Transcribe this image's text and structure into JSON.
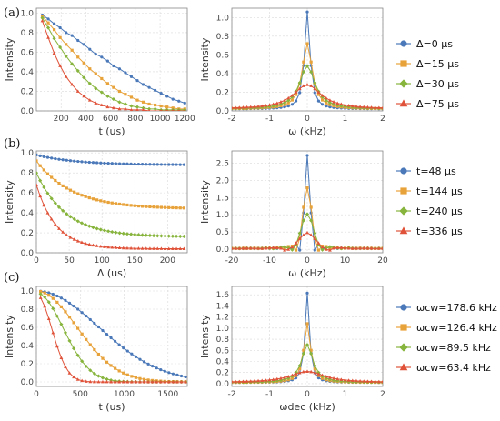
{
  "panels": [
    {
      "label": "(a)"
    },
    {
      "label": "(b)"
    },
    {
      "label": "(c)"
    }
  ],
  "colors": {
    "blue": "#4a78b8",
    "orange": "#e8a23a",
    "green": "#87b43c",
    "red": "#e0533a"
  },
  "chart_data": [
    {
      "id": "a-left",
      "type": "line",
      "xlabel": "t (us)",
      "ylabel": "Intensity",
      "xlim": [
        0,
        1220
      ],
      "ylim": [
        0,
        1.05
      ],
      "xticks": [
        200,
        400,
        600,
        800,
        1000,
        1200
      ],
      "xtick_labels": [
        "200",
        "400",
        "600",
        "800",
        "1000",
        "1200"
      ],
      "yticks": [
        0.0,
        0.2,
        0.4,
        0.6,
        0.8,
        1.0
      ],
      "ytick_labels": [
        "0.0",
        "0.2",
        "0.4",
        "0.6",
        "0.8",
        "1.0"
      ],
      "grid": true,
      "series": [
        {
          "color": "blue",
          "marker": "circle",
          "x": [
            48,
            96,
            144,
            192,
            240,
            288,
            336,
            384,
            432,
            480,
            528,
            576,
            624,
            672,
            720,
            768,
            816,
            864,
            912,
            960,
            1008,
            1056,
            1104,
            1152,
            1200
          ],
          "y": [
            0.98,
            0.94,
            0.89,
            0.85,
            0.8,
            0.77,
            0.72,
            0.68,
            0.63,
            0.58,
            0.55,
            0.51,
            0.46,
            0.43,
            0.39,
            0.35,
            0.31,
            0.27,
            0.24,
            0.21,
            0.18,
            0.15,
            0.12,
            0.1,
            0.08
          ]
        },
        {
          "color": "orange",
          "marker": "square",
          "x": [
            48,
            96,
            144,
            192,
            240,
            288,
            336,
            384,
            432,
            480,
            528,
            576,
            624,
            672,
            720,
            768,
            816,
            864,
            912,
            960,
            1008,
            1056,
            1104,
            1152,
            1200
          ],
          "y": [
            0.97,
            0.9,
            0.83,
            0.75,
            0.68,
            0.62,
            0.55,
            0.49,
            0.43,
            0.38,
            0.33,
            0.28,
            0.24,
            0.2,
            0.17,
            0.14,
            0.11,
            0.09,
            0.07,
            0.06,
            0.05,
            0.04,
            0.03,
            0.02,
            0.02
          ]
        },
        {
          "color": "green",
          "marker": "diamond",
          "x": [
            48,
            96,
            144,
            192,
            240,
            288,
            336,
            384,
            432,
            480,
            528,
            576,
            624,
            672,
            720,
            768,
            816,
            864,
            912,
            960,
            1008,
            1056,
            1104,
            1152,
            1200
          ],
          "y": [
            0.95,
            0.85,
            0.74,
            0.65,
            0.56,
            0.48,
            0.41,
            0.34,
            0.28,
            0.23,
            0.19,
            0.15,
            0.12,
            0.09,
            0.07,
            0.05,
            0.04,
            0.03,
            0.02,
            0.02,
            0.01,
            0.01,
            0.01,
            0.01,
            0.01
          ]
        },
        {
          "color": "red",
          "marker": "triangle",
          "x": [
            48,
            96,
            144,
            192,
            240,
            288,
            336,
            384,
            432,
            480,
            528,
            576,
            624,
            672,
            720,
            768,
            816,
            864,
            912,
            960,
            1008,
            1056,
            1104,
            1152,
            1200
          ],
          "y": [
            0.92,
            0.75,
            0.59,
            0.46,
            0.35,
            0.27,
            0.2,
            0.15,
            0.11,
            0.08,
            0.06,
            0.04,
            0.03,
            0.02,
            0.02,
            0.01,
            0.01,
            0.01,
            0.0,
            0.0,
            0.0,
            0.0,
            0.0,
            0.0,
            0.0
          ]
        }
      ]
    },
    {
      "id": "a-right",
      "type": "line",
      "xlabel": "ω (kHz)",
      "ylabel": "Intensity",
      "xlim": [
        -2,
        2
      ],
      "ylim": [
        0,
        1.1
      ],
      "xticks": [
        -2,
        -1,
        0,
        1,
        2
      ],
      "xtick_labels": [
        "-2",
        "-1",
        "0",
        "1",
        "2"
      ],
      "yticks": [
        0.0,
        0.2,
        0.4,
        0.6,
        0.8,
        1.0
      ],
      "ytick_labels": [
        "0.0",
        "0.2",
        "0.4",
        "0.6",
        "0.8",
        "1.0"
      ],
      "grid": true,
      "legend": [
        "Δ=0 μs",
        "Δ=15 μs",
        "Δ=30 μs",
        "Δ=75 μs"
      ],
      "series": [
        {
          "color": "blue",
          "marker": "circle",
          "peak": 1.06,
          "width": 0.09,
          "baseline": 0.02,
          "shape": "lorentz",
          "xmin": -2,
          "xmax": 2,
          "n": 41
        },
        {
          "color": "orange",
          "marker": "square",
          "peak": 0.72,
          "width": 0.16,
          "baseline": 0.02,
          "shape": "lorentz",
          "xmin": -2,
          "xmax": 2,
          "n": 41
        },
        {
          "color": "green",
          "marker": "diamond",
          "peak": 0.48,
          "width": 0.25,
          "baseline": 0.02,
          "shape": "lorentz",
          "xmin": -2,
          "xmax": 2,
          "n": 41
        },
        {
          "color": "red",
          "marker": "triangle",
          "peak": 0.28,
          "width": 0.45,
          "baseline": 0.02,
          "shape": "lorentz",
          "xmin": -2,
          "xmax": 2,
          "n": 41
        }
      ]
    },
    {
      "id": "b-left",
      "type": "line",
      "xlabel": "Δ (us)",
      "ylabel": "Intensity",
      "xlim": [
        0,
        230
      ],
      "ylim": [
        0,
        1.02
      ],
      "xticks": [
        0,
        50,
        100,
        150,
        200
      ],
      "xtick_labels": [
        "0",
        "50",
        "100",
        "150",
        "200"
      ],
      "yticks": [
        0.0,
        0.2,
        0.4,
        0.6,
        0.8,
        1.0
      ],
      "ytick_labels": [
        "0.0",
        "0.2",
        "0.4",
        "0.6",
        "0.8",
        "1.0"
      ],
      "grid": true,
      "series": [
        {
          "color": "blue",
          "marker": "circle",
          "decay": "exp",
          "a": 0.98,
          "tau": 60,
          "offset": 0.88,
          "xmin": 0,
          "xmax": 225,
          "n": 40
        },
        {
          "color": "orange",
          "marker": "square",
          "decay": "exp",
          "a": 0.92,
          "tau": 55,
          "offset": 0.44,
          "xmin": 0,
          "xmax": 225,
          "n": 40
        },
        {
          "color": "green",
          "marker": "diamond",
          "decay": "exp",
          "a": 0.8,
          "tau": 45,
          "offset": 0.16,
          "xmin": 0,
          "xmax": 225,
          "n": 40
        },
        {
          "color": "red",
          "marker": "triangle",
          "decay": "exp",
          "a": 0.68,
          "tau": 30,
          "offset": 0.04,
          "xmin": 0,
          "xmax": 225,
          "n": 40
        }
      ]
    },
    {
      "id": "b-right",
      "type": "line",
      "xlabel": "ω (kHz)",
      "ylabel": "Intensity",
      "xlim": [
        -20,
        20
      ],
      "ylim": [
        -0.1,
        2.85
      ],
      "xticks": [
        -20,
        -10,
        0,
        10,
        20
      ],
      "xtick_labels": [
        "-20",
        "-10",
        "0",
        "10",
        "20"
      ],
      "yticks": [
        0.0,
        0.5,
        1.0,
        1.5,
        2.0,
        2.5
      ],
      "ytick_labels": [
        "0.0",
        "0.5",
        "1.0",
        "1.5",
        "2.0",
        "2.5"
      ],
      "grid": true,
      "legend": [
        "t=48 μs",
        "t=144 μs",
        "t=240 μs",
        "t=336 μs"
      ],
      "series": [
        {
          "color": "blue",
          "marker": "circle",
          "peak": 2.72,
          "width": 0.9,
          "baseline": 0.05,
          "shape": "sinc",
          "xmin": -20,
          "xmax": 20,
          "n": 41
        },
        {
          "color": "orange",
          "marker": "square",
          "peak": 1.78,
          "width": 1.4,
          "baseline": 0.05,
          "shape": "sinc",
          "xmin": -20,
          "xmax": 20,
          "n": 41
        },
        {
          "color": "green",
          "marker": "diamond",
          "peak": 1.02,
          "width": 2.0,
          "baseline": 0.05,
          "shape": "sinc",
          "xmin": -20,
          "xmax": 20,
          "n": 41
        },
        {
          "color": "red",
          "marker": "triangle",
          "peak": 0.48,
          "width": 2.8,
          "baseline": 0.05,
          "shape": "sinc",
          "xmin": -20,
          "xmax": 20,
          "n": 41
        }
      ]
    },
    {
      "id": "c-left",
      "type": "line",
      "xlabel": "t (us)",
      "ylabel": "Intensity",
      "xlim": [
        0,
        1720
      ],
      "ylim": [
        -0.05,
        1.05
      ],
      "xticks": [
        0,
        500,
        1000,
        1500
      ],
      "xtick_labels": [
        "0",
        "500",
        "1000",
        "1500"
      ],
      "yticks": [
        0.0,
        0.2,
        0.4,
        0.6,
        0.8,
        1.0
      ],
      "ytick_labels": [
        "0.0",
        "0.2",
        "0.4",
        "0.6",
        "0.8",
        "1.0"
      ],
      "grid": true,
      "series": [
        {
          "color": "blue",
          "marker": "circle",
          "decay": "gauss",
          "a": 1.0,
          "tau": 1000,
          "offset": 0.0,
          "xmin": 48,
          "xmax": 1700,
          "n": 36
        },
        {
          "color": "orange",
          "marker": "square",
          "decay": "gauss",
          "a": 1.0,
          "tau": 650,
          "offset": 0.0,
          "xmin": 48,
          "xmax": 1700,
          "n": 36
        },
        {
          "color": "green",
          "marker": "diamond",
          "decay": "gauss",
          "a": 0.98,
          "tau": 430,
          "offset": 0.0,
          "xmin": 48,
          "xmax": 1700,
          "n": 36
        },
        {
          "color": "red",
          "marker": "triangle",
          "decay": "gauss",
          "a": 0.96,
          "tau": 250,
          "offset": 0.0,
          "xmin": 48,
          "xmax": 1700,
          "n": 36
        }
      ]
    },
    {
      "id": "c-right",
      "type": "line",
      "xlabel": "ωdec (kHz)",
      "ylabel": "Intensity",
      "xlim": [
        -2,
        2
      ],
      "ylim": [
        -0.05,
        1.75
      ],
      "xticks": [
        -2,
        -1,
        0,
        1,
        2
      ],
      "xtick_labels": [
        "-2",
        "-1",
        "0",
        "1",
        "2"
      ],
      "yticks": [
        0.0,
        0.2,
        0.4,
        0.6,
        0.8,
        1.0,
        1.2,
        1.4,
        1.6
      ],
      "ytick_labels": [
        "0.0",
        "0.2",
        "0.4",
        "0.6",
        "0.8",
        "1.0",
        "1.2",
        "1.4",
        "1.6"
      ],
      "grid": true,
      "legend": [
        "ωcw=178.6 kHz",
        "ωcw=126.4 kHz",
        "ωcw=89.5 kHz",
        "ωcw=63.4 kHz"
      ],
      "series": [
        {
          "color": "blue",
          "marker": "circle",
          "peak": 1.63,
          "width": 0.07,
          "baseline": 0.02,
          "shape": "lorentz",
          "xmin": -2,
          "xmax": 2,
          "n": 41
        },
        {
          "color": "orange",
          "marker": "square",
          "peak": 1.08,
          "width": 0.11,
          "baseline": 0.02,
          "shape": "lorentz",
          "xmin": -2,
          "xmax": 2,
          "n": 41
        },
        {
          "color": "green",
          "marker": "diamond",
          "peak": 0.7,
          "width": 0.18,
          "baseline": 0.02,
          "shape": "lorentz",
          "xmin": -2,
          "xmax": 2,
          "n": 41
        },
        {
          "color": "red",
          "marker": "triangle",
          "peak": 0.22,
          "width": 0.55,
          "baseline": 0.02,
          "shape": "lorentz",
          "xmin": -2,
          "xmax": 2,
          "n": 41
        }
      ]
    }
  ]
}
